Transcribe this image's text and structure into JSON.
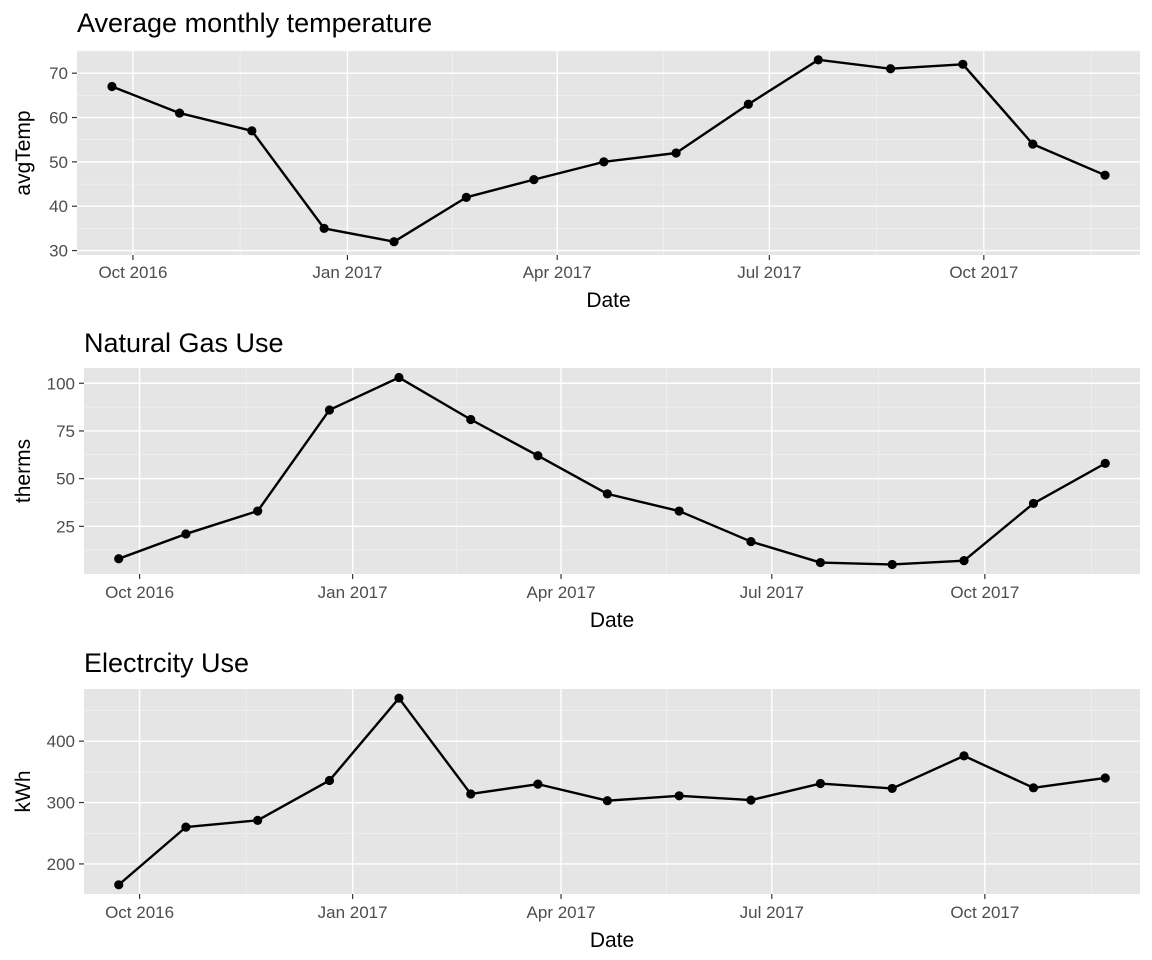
{
  "chart_data": [
    {
      "type": "line",
      "title": "Average monthly temperature",
      "xlabel": "Date",
      "ylabel": "avgTemp",
      "x": [
        "2016-09-22",
        "2016-10-21",
        "2016-11-21",
        "2016-12-22",
        "2017-01-21",
        "2017-02-21",
        "2017-03-22",
        "2017-04-21",
        "2017-05-22",
        "2017-06-22",
        "2017-07-22",
        "2017-08-22",
        "2017-09-22",
        "2017-10-22",
        "2017-11-22"
      ],
      "values": [
        67,
        61,
        57,
        35,
        32,
        42,
        46,
        50,
        52,
        63,
        73,
        71,
        72,
        54,
        47
      ],
      "y_ticks": [
        30,
        40,
        50,
        60,
        70
      ],
      "x_ticks": [
        {
          "label": "Oct 2016",
          "date": "2016-10-01"
        },
        {
          "label": "Jan 2017",
          "date": "2017-01-01"
        },
        {
          "label": "Apr 2017",
          "date": "2017-04-01"
        },
        {
          "label": "Jul 2017",
          "date": "2017-07-01"
        },
        {
          "label": "Oct 2017",
          "date": "2017-10-01"
        }
      ],
      "ylim": [
        29,
        75
      ],
      "xlim": [
        "2016-09-07",
        "2017-12-07"
      ]
    },
    {
      "type": "line",
      "title": "Natural Gas Use",
      "xlabel": "Date",
      "ylabel": "therms",
      "x": [
        "2016-09-22",
        "2016-10-21",
        "2016-11-21",
        "2016-12-22",
        "2017-01-21",
        "2017-02-21",
        "2017-03-22",
        "2017-04-21",
        "2017-05-22",
        "2017-06-22",
        "2017-07-22",
        "2017-08-22",
        "2017-09-22",
        "2017-10-22",
        "2017-11-22"
      ],
      "values": [
        8,
        21,
        33,
        86,
        103,
        81,
        62,
        42,
        33,
        17,
        6,
        5,
        7,
        37,
        58
      ],
      "y_ticks": [
        25,
        50,
        75,
        100
      ],
      "x_ticks": [
        {
          "label": "Oct 2016",
          "date": "2016-10-01"
        },
        {
          "label": "Jan 2017",
          "date": "2017-01-01"
        },
        {
          "label": "Apr 2017",
          "date": "2017-04-01"
        },
        {
          "label": "Jul 2017",
          "date": "2017-07-01"
        },
        {
          "label": "Oct 2017",
          "date": "2017-10-01"
        }
      ],
      "ylim": [
        0,
        108
      ],
      "xlim": [
        "2016-09-07",
        "2017-12-07"
      ]
    },
    {
      "type": "line",
      "title": "Electrcity Use",
      "xlabel": "Date",
      "ylabel": "kWh",
      "x": [
        "2016-09-22",
        "2016-10-21",
        "2016-11-21",
        "2016-12-22",
        "2017-01-21",
        "2017-02-21",
        "2017-03-22",
        "2017-04-21",
        "2017-05-22",
        "2017-06-22",
        "2017-07-22",
        "2017-08-22",
        "2017-09-22",
        "2017-10-22",
        "2017-11-22"
      ],
      "values": [
        166,
        260,
        271,
        336,
        470,
        314,
        330,
        303,
        311,
        304,
        331,
        323,
        376,
        324,
        340
      ],
      "y_ticks": [
        200,
        300,
        400
      ],
      "x_ticks": [
        {
          "label": "Oct 2016",
          "date": "2016-10-01"
        },
        {
          "label": "Jan 2017",
          "date": "2017-01-01"
        },
        {
          "label": "Apr 2017",
          "date": "2017-04-01"
        },
        {
          "label": "Jul 2017",
          "date": "2017-07-01"
        },
        {
          "label": "Oct 2017",
          "date": "2017-10-01"
        }
      ],
      "ylim": [
        151,
        485
      ],
      "xlim": [
        "2016-09-07",
        "2017-12-07"
      ]
    }
  ],
  "colors": {
    "panel": "#e5e5e5",
    "grid": "#ffffff",
    "line": "#000000",
    "tick_text": "#4d4d4d"
  }
}
